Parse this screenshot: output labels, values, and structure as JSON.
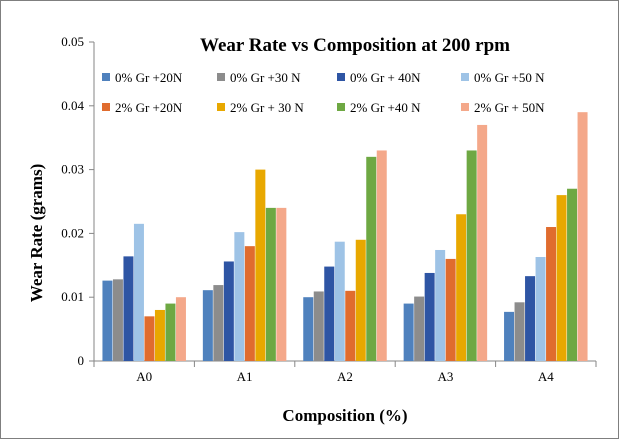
{
  "chart_data": {
    "type": "bar",
    "title": "Wear Rate vs Composition at 200 rpm",
    "xlabel": "Composition (%)",
    "ylabel": "Wear Rate (grams)",
    "ylim": [
      0,
      0.05
    ],
    "yticks": [
      "0",
      "0.01",
      "0.02",
      "0.03",
      "0.04",
      "0.05"
    ],
    "ytick_values": [
      0,
      0.01,
      0.02,
      0.03,
      0.04,
      0.05
    ],
    "categories": [
      "A0",
      "A1",
      "A2",
      "A3",
      "A4"
    ],
    "legend_position": "top",
    "grid": false,
    "series": [
      {
        "name": "0%  Gr +20N",
        "color": "#4f81bd",
        "values": [
          0.0126,
          0.0111,
          0.01,
          0.009,
          0.0077
        ]
      },
      {
        "name": "0%  Gr +30 N",
        "color": "#8c8c8c",
        "values": [
          0.0128,
          0.0119,
          0.0109,
          0.0101,
          0.0092
        ]
      },
      {
        "name": "0%  Gr + 40N",
        "color": "#2e55a4",
        "values": [
          0.0164,
          0.0156,
          0.0148,
          0.0138,
          0.0133
        ]
      },
      {
        "name": "0%  Gr +50 N",
        "color": "#9ec3e6",
        "values": [
          0.0215,
          0.0202,
          0.0187,
          0.0174,
          0.0163
        ]
      },
      {
        "name": "2%  Gr +20N",
        "color": "#e06c2e",
        "values": [
          0.007,
          0.018,
          0.011,
          0.016,
          0.021
        ]
      },
      {
        "name": "2%  Gr + 30 N",
        "color": "#e8a800",
        "values": [
          0.008,
          0.03,
          0.019,
          0.023,
          0.026
        ]
      },
      {
        "name": "2%  Gr +40 N",
        "color": "#6ea843",
        "values": [
          0.009,
          0.024,
          0.032,
          0.033,
          0.027
        ]
      },
      {
        "name": "2%  Gr + 50N",
        "color": "#f4a88a",
        "values": [
          0.01,
          0.024,
          0.033,
          0.037,
          0.039
        ]
      }
    ]
  }
}
